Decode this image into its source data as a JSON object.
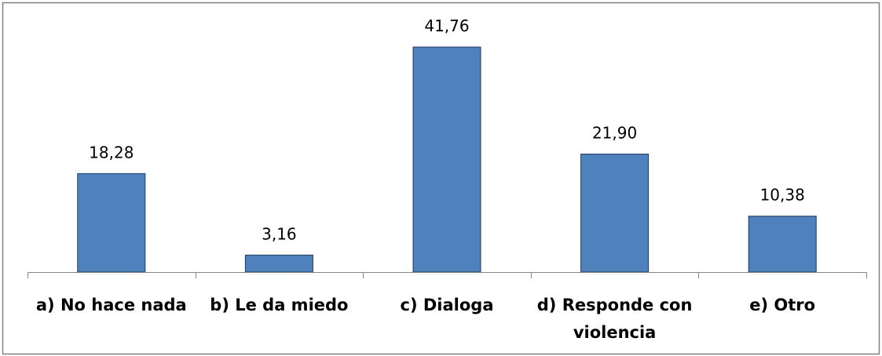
{
  "chart_data": {
    "type": "bar",
    "categories": [
      "a) No hace nada",
      "b) Le da miedo",
      "c) Dialoga",
      "d) Responde con violencia",
      "e) Otro"
    ],
    "values": [
      18.28,
      3.16,
      41.76,
      21.9,
      10.38
    ],
    "value_labels": [
      "18,28",
      "3,16",
      "41,76",
      "21,90",
      "10,38"
    ],
    "color": "#4f81bd"
  }
}
